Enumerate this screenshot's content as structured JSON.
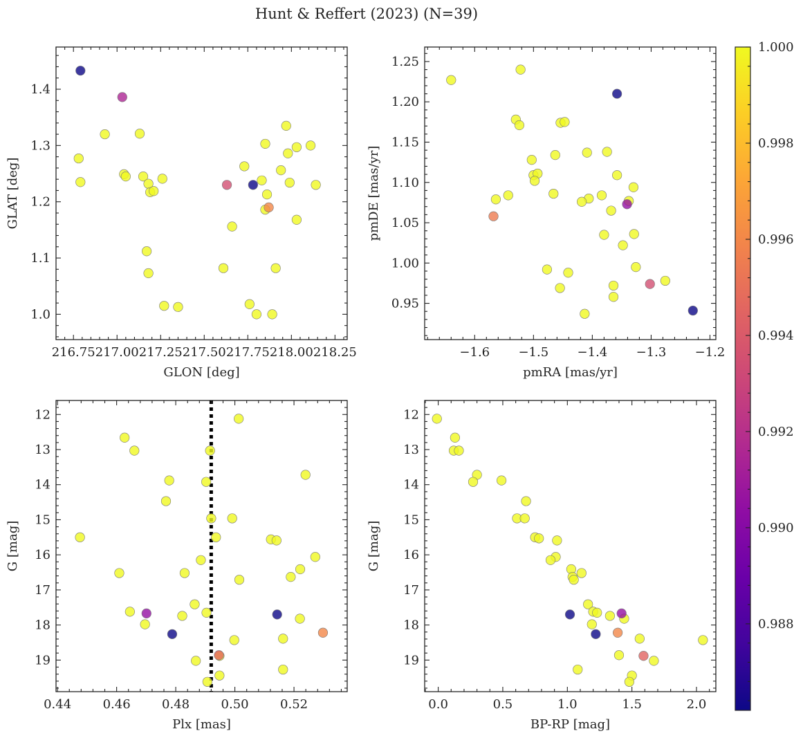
{
  "figure": {
    "title": "Hunt & Reffert (2023) (N=39)"
  },
  "colorbar": {
    "colormap": "plasma",
    "vmin": 0.9862,
    "vmax": 1.0,
    "tick_values": [
      0.988,
      0.99,
      0.992,
      0.994,
      0.996,
      0.998,
      1.0
    ],
    "tick_labels": [
      "0.988",
      "0.990",
      "0.992",
      "0.994",
      "0.996",
      "0.998",
      "1.000"
    ]
  },
  "chart_data": [
    {
      "type": "scatter",
      "name": "sky",
      "xlabel": "GLON [deg]",
      "ylabel": "GLAT [deg]",
      "xlim": [
        216.65,
        218.32
      ],
      "ylim": [
        0.955,
        1.475
      ],
      "x_ticks": [
        216.75,
        217.0,
        217.25,
        217.5,
        217.75,
        218.0,
        218.25
      ],
      "x_tick_labels": [
        "216.75",
        "217.00",
        "217.25",
        "217.50",
        "217.75",
        "218.00",
        "218.25"
      ],
      "y_ticks": [
        1.0,
        1.1,
        1.2,
        1.3,
        1.4
      ],
      "y_tick_labels": [
        "1.0",
        "1.1",
        "1.2",
        "1.3",
        "1.4"
      ],
      "points": [
        {
          "x": 216.79,
          "y": 1.433,
          "c": 0.9862
        },
        {
          "x": 217.03,
          "y": 1.386,
          "c": 0.9915
        },
        {
          "x": 216.78,
          "y": 1.277,
          "c": 1.0
        },
        {
          "x": 216.79,
          "y": 1.235,
          "c": 1.0
        },
        {
          "x": 216.93,
          "y": 1.32,
          "c": 1.0
        },
        {
          "x": 217.13,
          "y": 1.321,
          "c": 1.0
        },
        {
          "x": 217.04,
          "y": 1.249,
          "c": 1.0
        },
        {
          "x": 217.05,
          "y": 1.245,
          "c": 1.0
        },
        {
          "x": 217.15,
          "y": 1.245,
          "c": 1.0
        },
        {
          "x": 217.18,
          "y": 1.232,
          "c": 1.0
        },
        {
          "x": 217.26,
          "y": 1.241,
          "c": 1.0
        },
        {
          "x": 217.19,
          "y": 1.217,
          "c": 1.0
        },
        {
          "x": 217.21,
          "y": 1.219,
          "c": 1.0
        },
        {
          "x": 217.17,
          "y": 1.112,
          "c": 1.0
        },
        {
          "x": 217.18,
          "y": 1.073,
          "c": 1.0
        },
        {
          "x": 217.27,
          "y": 1.015,
          "c": 1.0
        },
        {
          "x": 217.35,
          "y": 1.013,
          "c": 1.0
        },
        {
          "x": 217.63,
          "y": 1.23,
          "c": 0.9935
        },
        {
          "x": 217.66,
          "y": 1.156,
          "c": 1.0
        },
        {
          "x": 217.61,
          "y": 1.082,
          "c": 1.0
        },
        {
          "x": 217.73,
          "y": 1.263,
          "c": 1.0
        },
        {
          "x": 217.78,
          "y": 1.23,
          "c": 0.9862
        },
        {
          "x": 217.83,
          "y": 1.238,
          "c": 1.0
        },
        {
          "x": 217.85,
          "y": 1.303,
          "c": 1.0
        },
        {
          "x": 217.86,
          "y": 1.213,
          "c": 1.0
        },
        {
          "x": 217.87,
          "y": 1.19,
          "c": 0.996
        },
        {
          "x": 217.85,
          "y": 1.186,
          "c": 1.0
        },
        {
          "x": 217.91,
          "y": 1.082,
          "c": 1.0
        },
        {
          "x": 217.76,
          "y": 1.018,
          "c": 1.0
        },
        {
          "x": 217.8,
          "y": 1.0,
          "c": 1.0
        },
        {
          "x": 217.89,
          "y": 1.0,
          "c": 1.0
        },
        {
          "x": 217.94,
          "y": 1.256,
          "c": 1.0
        },
        {
          "x": 217.97,
          "y": 1.335,
          "c": 1.0
        },
        {
          "x": 217.98,
          "y": 1.286,
          "c": 1.0
        },
        {
          "x": 218.03,
          "y": 1.297,
          "c": 1.0
        },
        {
          "x": 217.99,
          "y": 1.234,
          "c": 1.0
        },
        {
          "x": 218.03,
          "y": 1.168,
          "c": 1.0
        },
        {
          "x": 218.11,
          "y": 1.3,
          "c": 1.0
        },
        {
          "x": 218.14,
          "y": 1.23,
          "c": 1.0
        }
      ]
    },
    {
      "type": "scatter",
      "name": "proper-motion",
      "xlabel": "pmRA [mas/yr]",
      "ylabel": "pmDE [mas/yr]",
      "xlim": [
        -1.685,
        -1.19
      ],
      "ylim": [
        0.905,
        1.268
      ],
      "x_ticks": [
        -1.6,
        -1.5,
        -1.4,
        -1.3,
        -1.2
      ],
      "x_tick_labels": [
        "−1.6",
        "−1.5",
        "−1.4",
        "−1.3",
        "−1.2"
      ],
      "y_ticks": [
        0.95,
        1.0,
        1.05,
        1.1,
        1.15,
        1.2,
        1.25
      ],
      "y_tick_labels": [
        "0.95",
        "1.00",
        "1.05",
        "1.10",
        "1.15",
        "1.20",
        "1.25"
      ],
      "points": [
        {
          "x": -1.64,
          "y": 1.227,
          "c": 1.0
        },
        {
          "x": -1.522,
          "y": 1.24,
          "c": 1.0
        },
        {
          "x": -1.358,
          "y": 1.21,
          "c": 0.9862
        },
        {
          "x": -1.53,
          "y": 1.178,
          "c": 1.0
        },
        {
          "x": -1.524,
          "y": 1.171,
          "c": 1.0
        },
        {
          "x": -1.454,
          "y": 1.174,
          "c": 1.0
        },
        {
          "x": -1.447,
          "y": 1.175,
          "c": 1.0
        },
        {
          "x": -1.463,
          "y": 1.134,
          "c": 1.0
        },
        {
          "x": -1.409,
          "y": 1.137,
          "c": 1.0
        },
        {
          "x": -1.375,
          "y": 1.138,
          "c": 1.0
        },
        {
          "x": -1.503,
          "y": 1.128,
          "c": 1.0
        },
        {
          "x": -1.5,
          "y": 1.109,
          "c": 1.0
        },
        {
          "x": -1.493,
          "y": 1.111,
          "c": 1.0
        },
        {
          "x": -1.498,
          "y": 1.102,
          "c": 1.0
        },
        {
          "x": -1.358,
          "y": 1.109,
          "c": 1.0
        },
        {
          "x": -1.33,
          "y": 1.094,
          "c": 1.0
        },
        {
          "x": -1.466,
          "y": 1.086,
          "c": 1.0
        },
        {
          "x": -1.564,
          "y": 1.079,
          "c": 1.0
        },
        {
          "x": -1.543,
          "y": 1.084,
          "c": 1.0
        },
        {
          "x": -1.384,
          "y": 1.084,
          "c": 1.0
        },
        {
          "x": -1.406,
          "y": 1.08,
          "c": 1.0
        },
        {
          "x": -1.418,
          "y": 1.076,
          "c": 1.0
        },
        {
          "x": -1.338,
          "y": 1.077,
          "c": 1.0
        },
        {
          "x": -1.341,
          "y": 1.073,
          "c": 0.9905
        },
        {
          "x": -1.568,
          "y": 1.058,
          "c": 0.9955
        },
        {
          "x": -1.368,
          "y": 1.065,
          "c": 1.0
        },
        {
          "x": -1.38,
          "y": 1.035,
          "c": 1.0
        },
        {
          "x": -1.329,
          "y": 1.036,
          "c": 1.0
        },
        {
          "x": -1.348,
          "y": 1.022,
          "c": 1.0
        },
        {
          "x": -1.326,
          "y": 0.995,
          "c": 1.0
        },
        {
          "x": -1.477,
          "y": 0.992,
          "c": 1.0
        },
        {
          "x": -1.441,
          "y": 0.988,
          "c": 1.0
        },
        {
          "x": -1.276,
          "y": 0.978,
          "c": 1.0
        },
        {
          "x": -1.302,
          "y": 0.974,
          "c": 0.9935
        },
        {
          "x": -1.364,
          "y": 0.972,
          "c": 1.0
        },
        {
          "x": -1.455,
          "y": 0.969,
          "c": 1.0
        },
        {
          "x": -1.364,
          "y": 0.958,
          "c": 1.0
        },
        {
          "x": -1.229,
          "y": 0.941,
          "c": 0.9862
        },
        {
          "x": -1.413,
          "y": 0.937,
          "c": 1.0
        }
      ]
    },
    {
      "type": "scatter",
      "name": "parallax-magnitude",
      "xlabel": "Plx [mas]",
      "ylabel": "G [mag]",
      "xlim": [
        0.4395,
        0.538
      ],
      "ylim": [
        19.9,
        11.6
      ],
      "y_inverted": true,
      "x_ticks": [
        0.44,
        0.46,
        0.48,
        0.5,
        0.52
      ],
      "x_tick_labels": [
        "0.44",
        "0.46",
        "0.48",
        "0.50",
        "0.52"
      ],
      "y_ticks": [
        12,
        13,
        14,
        15,
        16,
        17,
        18,
        19
      ],
      "y_tick_labels": [
        "12",
        "13",
        "14",
        "15",
        "16",
        "17",
        "18",
        "19"
      ],
      "vline": {
        "x": 0.492,
        "style": "dotted",
        "color": "#000000"
      },
      "points": [
        {
          "x": 0.5013,
          "y": 12.12,
          "c": 1.0
        },
        {
          "x": 0.4627,
          "y": 12.66,
          "c": 1.0
        },
        {
          "x": 0.466,
          "y": 13.03,
          "c": 1.0
        },
        {
          "x": 0.4916,
          "y": 13.03,
          "c": 1.0
        },
        {
          "x": 0.5239,
          "y": 13.72,
          "c": 1.0
        },
        {
          "x": 0.4778,
          "y": 13.88,
          "c": 1.0
        },
        {
          "x": 0.4903,
          "y": 13.92,
          "c": 1.0
        },
        {
          "x": 0.4767,
          "y": 14.47,
          "c": 1.0
        },
        {
          "x": 0.492,
          "y": 14.96,
          "c": 1.0
        },
        {
          "x": 0.4991,
          "y": 14.96,
          "c": 1.0
        },
        {
          "x": 0.4476,
          "y": 15.5,
          "c": 1.0
        },
        {
          "x": 0.4936,
          "y": 15.5,
          "c": 1.0
        },
        {
          "x": 0.5122,
          "y": 15.56,
          "c": 1.0
        },
        {
          "x": 0.5141,
          "y": 15.59,
          "c": 1.0
        },
        {
          "x": 0.5272,
          "y": 16.06,
          "c": 1.0
        },
        {
          "x": 0.4885,
          "y": 16.15,
          "c": 1.0
        },
        {
          "x": 0.5221,
          "y": 16.41,
          "c": 1.0
        },
        {
          "x": 0.4609,
          "y": 16.52,
          "c": 1.0
        },
        {
          "x": 0.483,
          "y": 16.52,
          "c": 1.0
        },
        {
          "x": 0.5189,
          "y": 16.63,
          "c": 1.0
        },
        {
          "x": 0.5015,
          "y": 16.71,
          "c": 1.0
        },
        {
          "x": 0.4864,
          "y": 17.41,
          "c": 1.0
        },
        {
          "x": 0.4645,
          "y": 17.62,
          "c": 1.0
        },
        {
          "x": 0.4904,
          "y": 17.65,
          "c": 1.0
        },
        {
          "x": 0.4701,
          "y": 17.67,
          "c": 0.9905
        },
        {
          "x": 0.5143,
          "y": 17.7,
          "c": 0.9862
        },
        {
          "x": 0.4822,
          "y": 17.74,
          "c": 1.0
        },
        {
          "x": 0.522,
          "y": 17.82,
          "c": 1.0
        },
        {
          "x": 0.4696,
          "y": 17.98,
          "c": 1.0
        },
        {
          "x": 0.5298,
          "y": 18.22,
          "c": 0.996
        },
        {
          "x": 0.4788,
          "y": 18.26,
          "c": 0.9862
        },
        {
          "x": 0.5163,
          "y": 18.39,
          "c": 1.0
        },
        {
          "x": 0.4998,
          "y": 18.43,
          "c": 1.0
        },
        {
          "x": 0.4946,
          "y": 18.86,
          "c": 0.9945
        },
        {
          "x": 0.4948,
          "y": 18.88,
          "c": 1.0
        },
        {
          "x": 0.4868,
          "y": 19.02,
          "c": 1.0
        },
        {
          "x": 0.5163,
          "y": 19.27,
          "c": 1.0
        },
        {
          "x": 0.4948,
          "y": 19.44,
          "c": 1.0
        },
        {
          "x": 0.4907,
          "y": 19.62,
          "c": 1.0
        }
      ]
    },
    {
      "type": "scatter",
      "name": "color-magnitude",
      "xlabel": "BP-RP [mag]",
      "ylabel": "G [mag]",
      "xlim": [
        -0.105,
        2.15
      ],
      "ylim": [
        19.9,
        11.6
      ],
      "y_inverted": true,
      "x_ticks": [
        0.0,
        0.5,
        1.0,
        1.5,
        2.0
      ],
      "x_tick_labels": [
        "0.0",
        "0.5",
        "1.0",
        "1.5",
        "2.0"
      ],
      "y_ticks": [
        12,
        13,
        14,
        15,
        16,
        17,
        18,
        19
      ],
      "y_tick_labels": [
        "12",
        "13",
        "14",
        "15",
        "16",
        "17",
        "18",
        "19"
      ],
      "points": [
        {
          "x": -0.01,
          "y": 12.12,
          "c": 1.0
        },
        {
          "x": 0.13,
          "y": 12.66,
          "c": 1.0
        },
        {
          "x": 0.12,
          "y": 13.03,
          "c": 1.0
        },
        {
          "x": 0.16,
          "y": 13.03,
          "c": 1.0
        },
        {
          "x": 0.3,
          "y": 13.72,
          "c": 1.0
        },
        {
          "x": 0.27,
          "y": 13.92,
          "c": 1.0
        },
        {
          "x": 0.49,
          "y": 13.88,
          "c": 1.0
        },
        {
          "x": 0.68,
          "y": 14.47,
          "c": 1.0
        },
        {
          "x": 0.61,
          "y": 14.96,
          "c": 1.0
        },
        {
          "x": 0.67,
          "y": 14.96,
          "c": 1.0
        },
        {
          "x": 0.75,
          "y": 15.5,
          "c": 1.0
        },
        {
          "x": 0.78,
          "y": 15.53,
          "c": 1.0
        },
        {
          "x": 0.92,
          "y": 15.59,
          "c": 1.0
        },
        {
          "x": 0.91,
          "y": 16.06,
          "c": 1.0
        },
        {
          "x": 0.87,
          "y": 16.15,
          "c": 1.0
        },
        {
          "x": 1.03,
          "y": 16.41,
          "c": 1.0
        },
        {
          "x": 1.11,
          "y": 16.52,
          "c": 1.0
        },
        {
          "x": 1.04,
          "y": 16.63,
          "c": 1.0
        },
        {
          "x": 1.05,
          "y": 16.71,
          "c": 1.0
        },
        {
          "x": 1.16,
          "y": 17.41,
          "c": 1.0
        },
        {
          "x": 1.2,
          "y": 17.62,
          "c": 1.0
        },
        {
          "x": 1.23,
          "y": 17.65,
          "c": 1.0
        },
        {
          "x": 1.42,
          "y": 17.67,
          "c": 0.9905
        },
        {
          "x": 1.02,
          "y": 17.7,
          "c": 0.9862
        },
        {
          "x": 1.33,
          "y": 17.74,
          "c": 1.0
        },
        {
          "x": 1.44,
          "y": 17.82,
          "c": 1.0
        },
        {
          "x": 1.19,
          "y": 17.98,
          "c": 1.0
        },
        {
          "x": 1.39,
          "y": 18.22,
          "c": 0.996
        },
        {
          "x": 1.22,
          "y": 18.26,
          "c": 0.9862
        },
        {
          "x": 1.56,
          "y": 18.39,
          "c": 1.0
        },
        {
          "x": 2.05,
          "y": 18.43,
          "c": 1.0
        },
        {
          "x": 1.4,
          "y": 18.86,
          "c": 1.0
        },
        {
          "x": 1.59,
          "y": 18.88,
          "c": 0.9945
        },
        {
          "x": 1.67,
          "y": 19.02,
          "c": 1.0
        },
        {
          "x": 1.08,
          "y": 19.27,
          "c": 1.0
        },
        {
          "x": 1.5,
          "y": 19.44,
          "c": 1.0
        },
        {
          "x": 1.48,
          "y": 19.62,
          "c": 1.0
        }
      ]
    }
  ]
}
